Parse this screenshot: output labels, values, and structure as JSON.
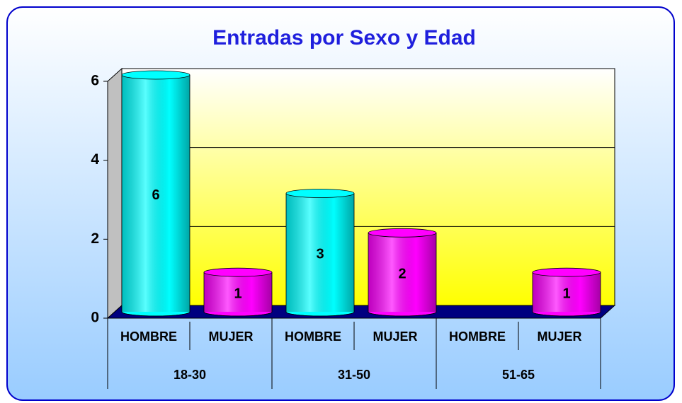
{
  "chart_data": {
    "type": "bar",
    "title": "Entradas por Sexo y Edad",
    "groups": [
      {
        "name": "18-30",
        "categories": [
          "HOMBRE",
          "MUJER"
        ]
      },
      {
        "name": "31-50",
        "categories": [
          "HOMBRE",
          "MUJER"
        ]
      },
      {
        "name": "51-65",
        "categories": [
          "HOMBRE",
          "MUJER"
        ]
      }
    ],
    "values": [
      6,
      1,
      3,
      2,
      null,
      1
    ],
    "colors": [
      "#00ffff",
      "#ff00ff",
      "#00ffff",
      "#ff00ff",
      "#00ffff",
      "#ff00ff"
    ],
    "ylim": [
      0,
      6
    ],
    "yticks": [
      0,
      2,
      4,
      6
    ],
    "grid": true
  }
}
